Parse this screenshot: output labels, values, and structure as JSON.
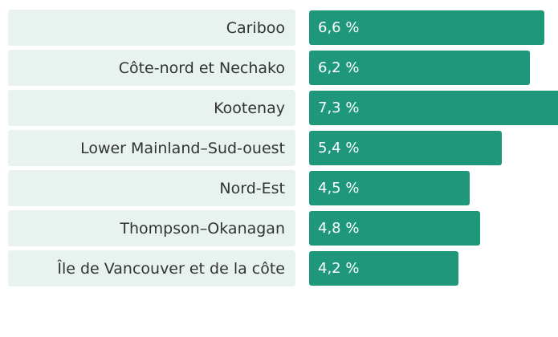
{
  "chart_data": {
    "type": "bar",
    "orientation": "horizontal",
    "categories": [
      "Cariboo",
      "Côte-nord et Nechako",
      "Kootenay",
      "Lower Mainland–Sud-ouest",
      "Nord-Est",
      "Thompson–Okanagan",
      "Île de Vancouver et de la côte"
    ],
    "values": [
      6.6,
      6.2,
      7.3,
      5.4,
      4.5,
      4.8,
      4.2
    ],
    "value_labels": [
      "6,6 %",
      "6,2 %",
      "7,3 %",
      "5,4 %",
      "4,5 %",
      "4,8 %",
      "4,2 %"
    ],
    "color": "#1f977b"
  }
}
